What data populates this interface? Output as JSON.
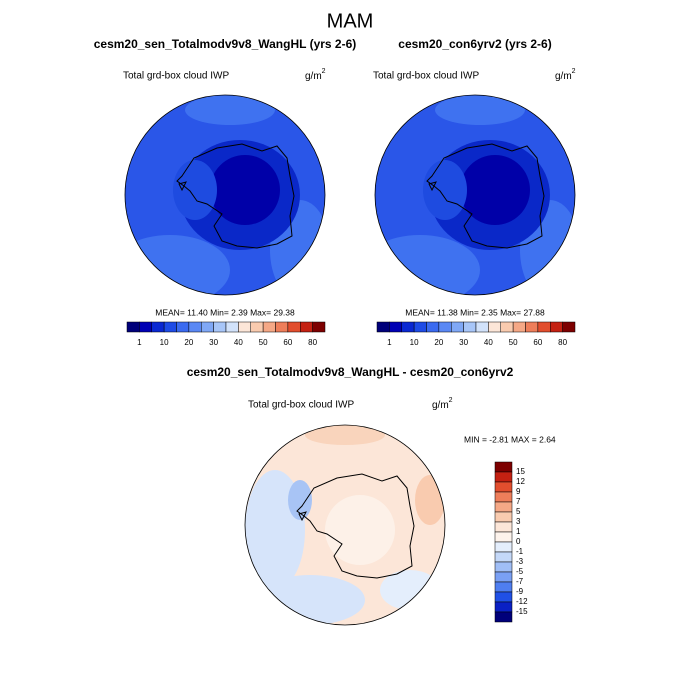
{
  "title": "MAM",
  "panels": [
    {
      "title": "cesm20_sen_Totalmodv9v8_WangHL (yrs 2-6)",
      "variable": "Total grd-box cloud IWP",
      "units": "g/m",
      "units_exponent": "2",
      "stats": "MEAN=  11.40  Min=   2.39  Max=  29.38"
    },
    {
      "title": "cesm20_con6yrv2 (yrs 2-6)",
      "variable": "Total grd-box cloud IWP",
      "units": "g/m",
      "units_exponent": "2",
      "stats": "MEAN=  11.38  Min=   2.35  Max=  27.88"
    },
    {
      "title": "cesm20_sen_Totalmodv9v8_WangHL - cesm20_con6yrv2",
      "variable": "Total grd-box cloud IWP",
      "units": "g/m",
      "units_exponent": "2",
      "stats": "MIN =  -2.81 MAX =   2.64"
    }
  ],
  "colorbar_top": {
    "labels": [
      "1",
      "10",
      "20",
      "30",
      "40",
      "50",
      "60",
      "80"
    ],
    "colors": [
      "#00007a",
      "#0000b4",
      "#0a28d2",
      "#1e4be6",
      "#3a6af0",
      "#5a88f4",
      "#80a8f6",
      "#a8c6f8",
      "#d2e2fa",
      "#fce6d8",
      "#f9cbaf",
      "#f5a886",
      "#ee7e5a",
      "#e24e2e",
      "#c42112",
      "#7d0000"
    ]
  },
  "colorbar_diff": {
    "labels": [
      "15",
      "12",
      "9",
      "7",
      "5",
      "3",
      "1",
      "0",
      "-1",
      "-3",
      "-5",
      "-7",
      "-9",
      "-12",
      "-15"
    ],
    "colors": [
      "#7d0000",
      "#c42112",
      "#e24e2e",
      "#ee7e5a",
      "#f5a886",
      "#f9cbaf",
      "#fce6d8",
      "#fdf3ec",
      "#e4eefc",
      "#c4d8f8",
      "#a0bef6",
      "#7aa0f4",
      "#4f7ef0",
      "#2050e6",
      "#0a20c4",
      "#00007a"
    ]
  }
}
